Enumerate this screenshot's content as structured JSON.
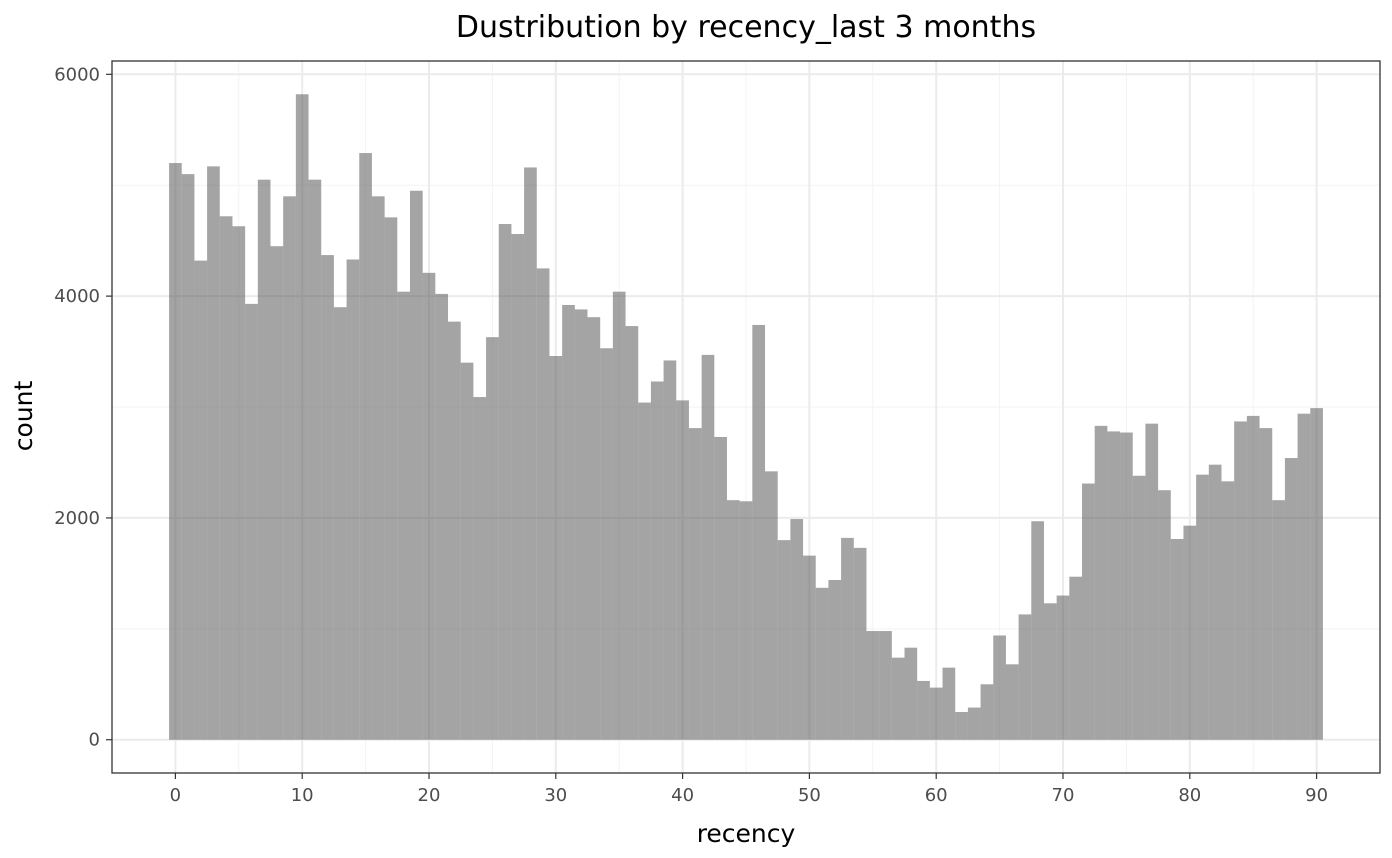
{
  "chart_data": {
    "type": "bar",
    "title": "Dustribution by recency_last 3 months",
    "xlabel": "recency",
    "ylabel": "count",
    "xlim": [
      -5,
      95
    ],
    "ylim": [
      -300,
      6120
    ],
    "x_ticks": [
      0,
      10,
      20,
      30,
      40,
      50,
      60,
      70,
      80,
      90
    ],
    "y_ticks": [
      0,
      2000,
      4000,
      6000
    ],
    "grid": true,
    "bar_color": "#595959",
    "x": [
      0,
      1,
      2,
      3,
      4,
      5,
      6,
      7,
      8,
      9,
      10,
      11,
      12,
      13,
      14,
      15,
      16,
      17,
      18,
      19,
      20,
      21,
      22,
      23,
      24,
      25,
      26,
      27,
      28,
      29,
      30,
      31,
      32,
      33,
      34,
      35,
      36,
      37,
      38,
      39,
      40,
      41,
      42,
      43,
      44,
      45,
      46,
      47,
      48,
      49,
      50,
      51,
      52,
      53,
      54,
      55,
      56,
      57,
      58,
      59,
      60,
      61,
      62,
      63,
      64,
      65,
      66,
      67,
      68,
      69,
      70,
      71,
      72,
      73,
      74,
      75,
      76,
      77,
      78,
      79,
      80,
      81,
      82,
      83,
      84,
      85,
      86,
      87,
      88,
      89,
      90
    ],
    "values": [
      5200,
      5100,
      4320,
      5170,
      4720,
      4630,
      3930,
      5050,
      4450,
      4900,
      5820,
      5050,
      4370,
      3900,
      4330,
      5290,
      4900,
      4710,
      4040,
      4950,
      4210,
      4020,
      3770,
      3400,
      3090,
      3630,
      4650,
      4560,
      5160,
      4250,
      3460,
      3920,
      3880,
      3810,
      3530,
      4040,
      3730,
      3040,
      3230,
      3420,
      3060,
      2810,
      3470,
      2730,
      2160,
      2150,
      3740,
      2420,
      1800,
      1990,
      1660,
      1370,
      1440,
      1820,
      1730,
      980,
      980,
      740,
      830,
      530,
      470,
      650,
      250,
      290,
      500,
      940,
      680,
      1130,
      1970,
      1230,
      1300,
      1470,
      2310,
      2830,
      2780,
      2770,
      2380,
      2850,
      2250,
      1810,
      1930,
      2390,
      2480,
      2330,
      2870,
      2920,
      2810,
      2160,
      2540,
      2940,
      2990
    ]
  }
}
